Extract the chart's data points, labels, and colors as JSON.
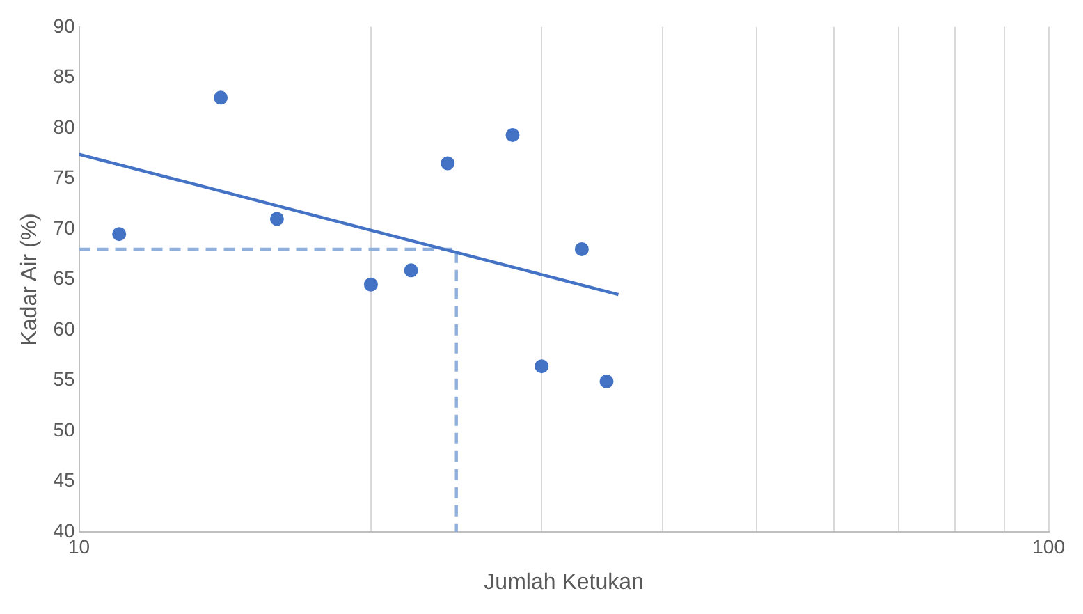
{
  "chart_data": {
    "type": "scatter",
    "xlabel": "Jumlah Ketukan",
    "ylabel": "Kadar Air (%)",
    "log": "x",
    "grid": "x",
    "marker": "circle",
    "xlim": [
      10,
      100
    ],
    "xticks": [
      10,
      {
        "value": 20,
        "label": null
      },
      {
        "value": 30,
        "label": null
      },
      {
        "value": 40,
        "label": null
      },
      {
        "value": 50,
        "label": null
      },
      {
        "value": 60,
        "label": null
      },
      {
        "value": 70,
        "label": null
      },
      {
        "value": 80,
        "label": null
      },
      {
        "value": 90,
        "label": null
      },
      100
    ],
    "ylim": [
      40,
      90
    ],
    "yticks": [
      40,
      45,
      50,
      55,
      60,
      65,
      70,
      75,
      80,
      85,
      90
    ],
    "series": [
      {
        "type": "scatter",
        "color": "#4472c4",
        "x": [
          11,
          14,
          16,
          20,
          22,
          24,
          28,
          30,
          33,
          35
        ],
        "values": [
          69.5,
          83,
          71,
          64.5,
          65.9,
          76.5,
          79.3,
          56.4,
          68,
          54.9
        ]
      },
      {
        "type": "line",
        "color": "#4472c4",
        "marker": "none",
        "line_style": "solid",
        "x": [
          10,
          36
        ],
        "values": [
          77.4,
          63.5
        ]
      },
      {
        "type": "line",
        "color": "#8fb0dc",
        "marker": "none",
        "line_style": "dashed",
        "x": [
          10,
          24.5,
          24.5
        ],
        "values": [
          68,
          68,
          40
        ]
      }
    ]
  }
}
